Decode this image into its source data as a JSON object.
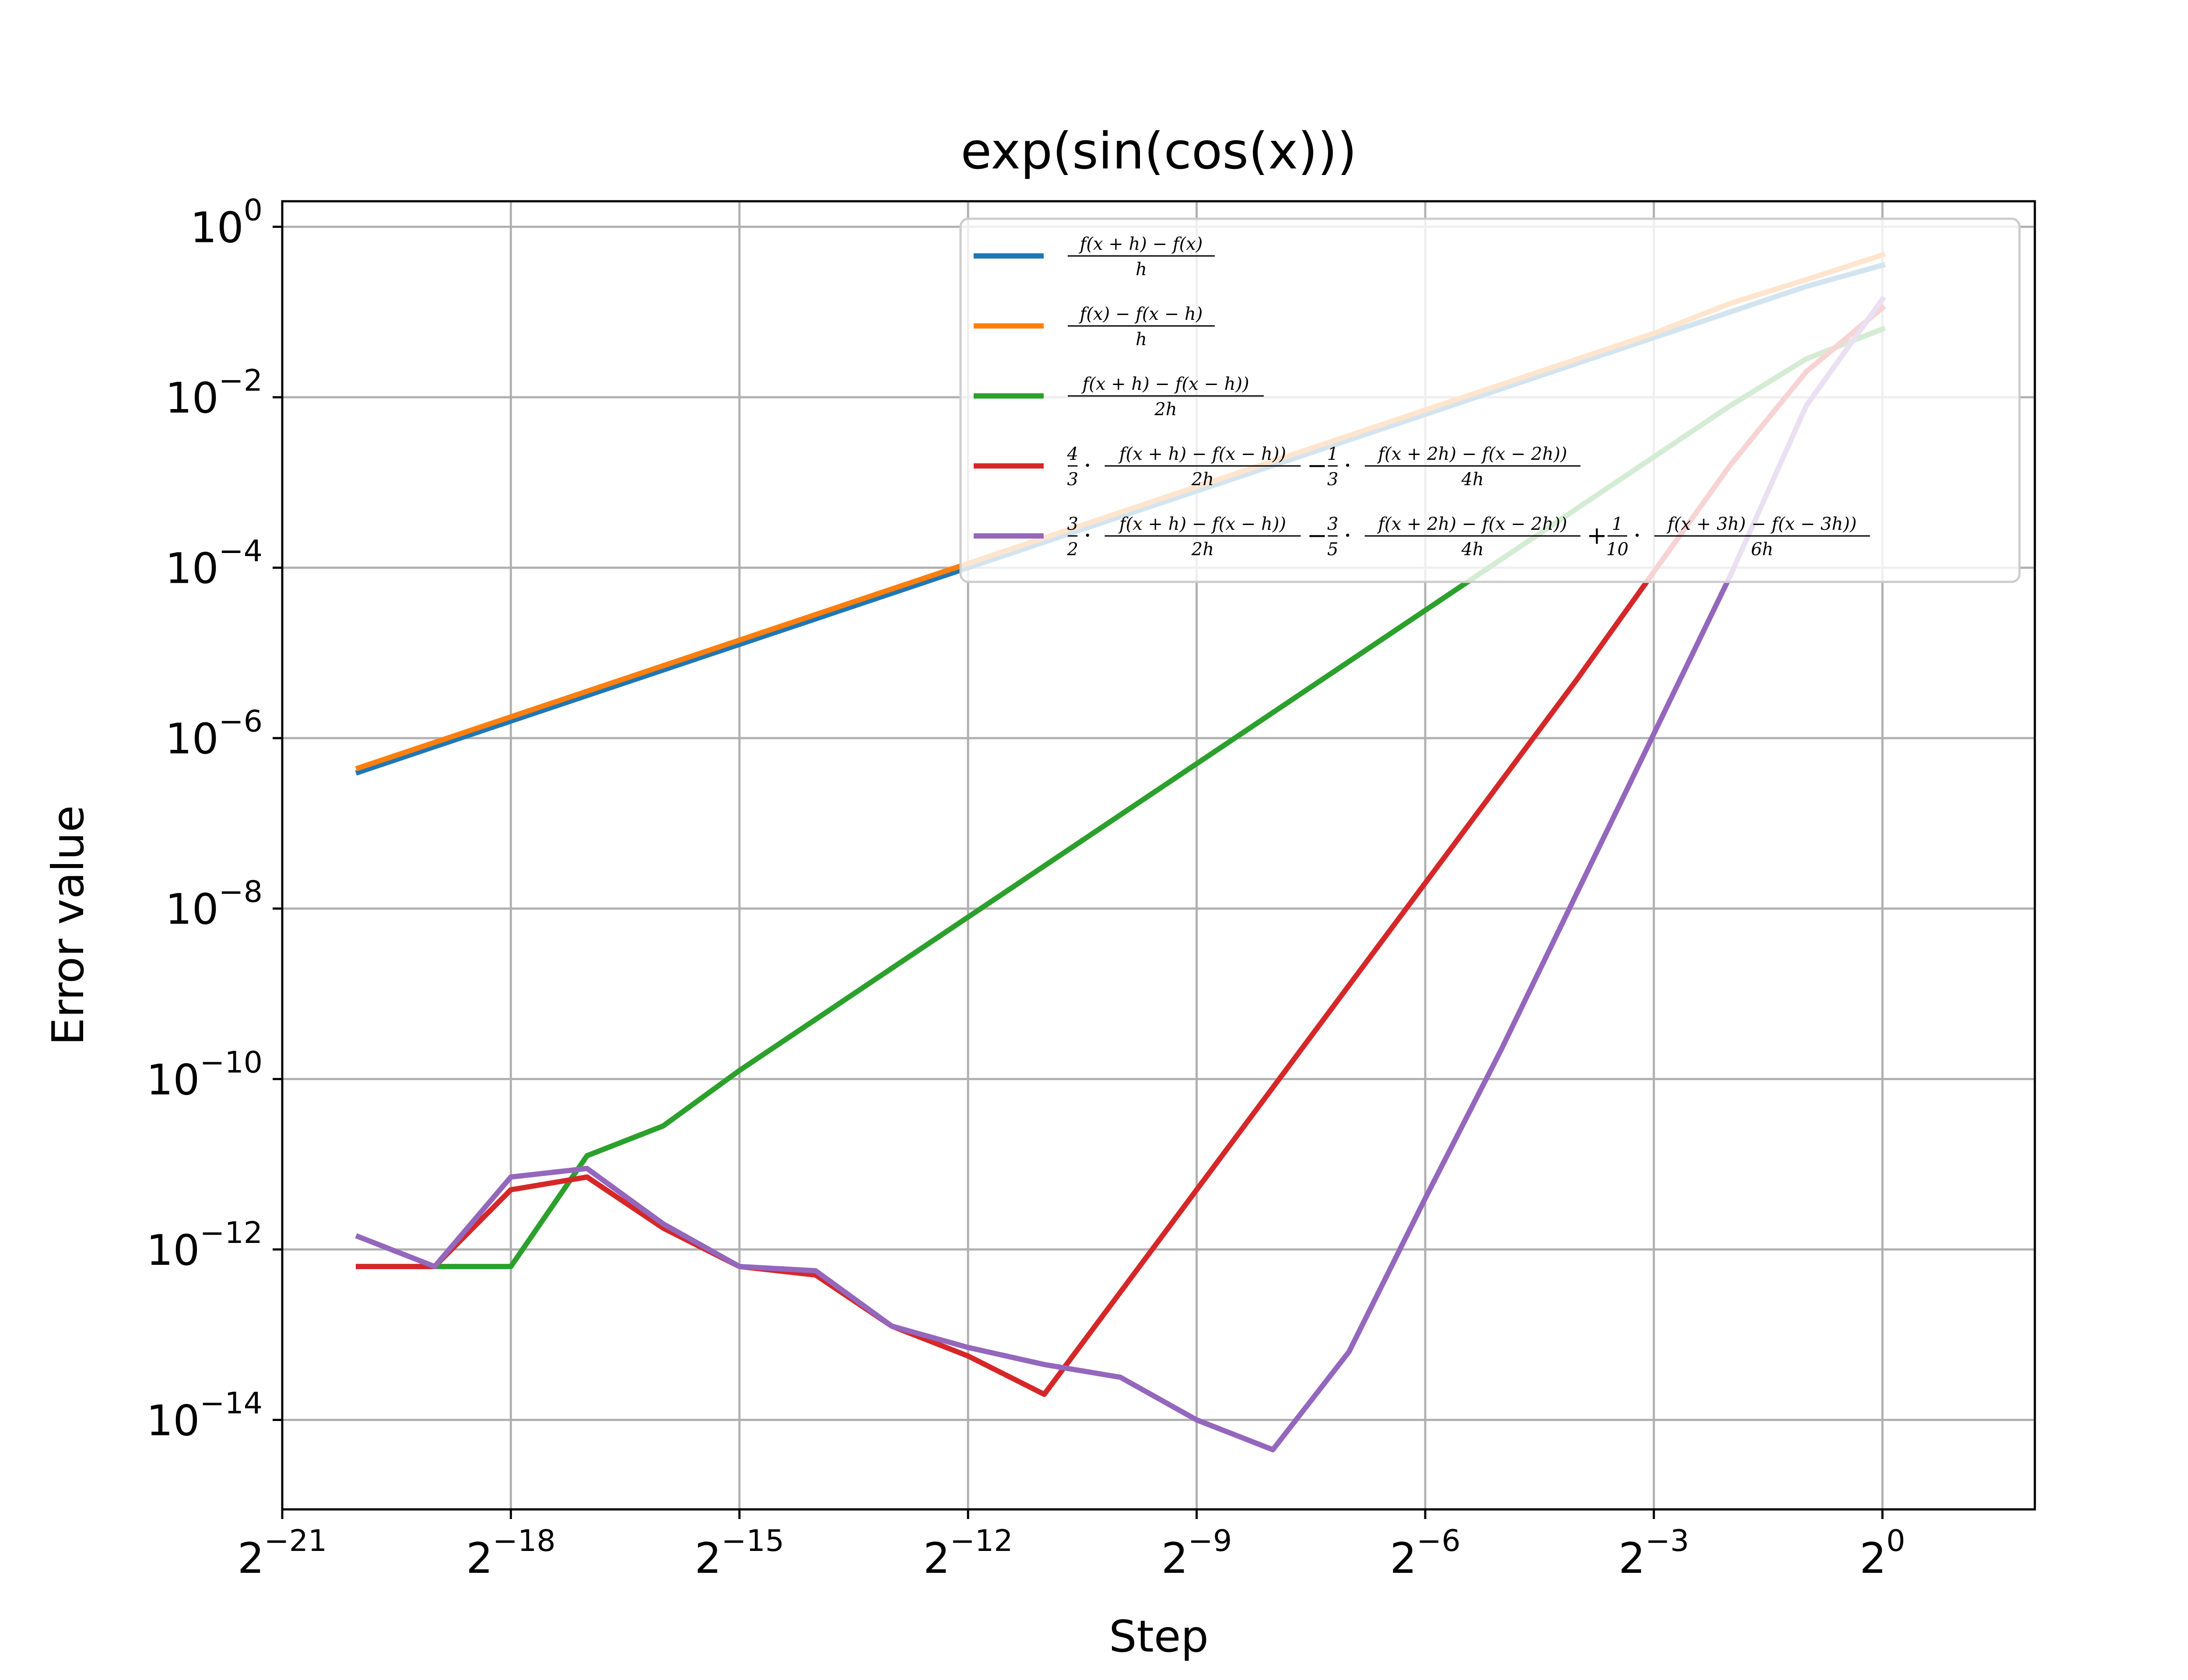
{
  "chart_data": {
    "type": "line",
    "title": "exp(sin(cos(x)))",
    "xlabel": "Step",
    "ylabel": "Error value",
    "x_scale": "log2",
    "y_scale": "log10",
    "xlim_exp": [
      -21,
      2
    ],
    "ylim_exp": [
      -15.05,
      0.3
    ],
    "x_tick_exps": [
      -21,
      -18,
      -15,
      -12,
      -9,
      -6,
      -3,
      0
    ],
    "y_tick_exps": [
      0,
      -2,
      -4,
      -6,
      -8,
      -10,
      -12,
      -14
    ],
    "x_tick_base": "2",
    "y_tick_base": "10",
    "grid": true,
    "legend_position": "upper-right",
    "x_exp": [
      -20,
      -19,
      -18,
      -17,
      -16,
      -15,
      -14,
      -13,
      -12,
      -11,
      -10,
      -9,
      -8,
      -7,
      -6,
      -5,
      -4,
      -3,
      -2,
      -1,
      0
    ],
    "series": [
      {
        "name": "forward",
        "color": "#1f77b4",
        "log10_values": [
          -6.4,
          -6.1,
          -5.8,
          -5.5,
          -5.2,
          -4.9,
          -4.6,
          -4.3,
          -4.0,
          -3.7,
          -3.4,
          -3.1,
          -2.8,
          -2.5,
          -2.2,
          -1.9,
          -1.6,
          -1.3,
          -1.0,
          -0.7,
          -0.45
        ]
      },
      {
        "name": "backward",
        "color": "#ff7f0e",
        "log10_values": [
          -6.35,
          -6.05,
          -5.75,
          -5.45,
          -5.15,
          -4.85,
          -4.55,
          -4.25,
          -3.95,
          -3.65,
          -3.35,
          -3.05,
          -2.75,
          -2.45,
          -2.15,
          -1.85,
          -1.55,
          -1.25,
          -0.9,
          -0.62,
          -0.33
        ]
      },
      {
        "name": "central",
        "color": "#2ca02c",
        "log10_values": [
          -12.2,
          -12.2,
          -12.2,
          -10.9,
          -10.55,
          -9.9,
          -9.3,
          -8.7,
          -8.1,
          -7.5,
          -6.9,
          -6.3,
          -5.7,
          -5.1,
          -4.5,
          -3.9,
          -3.3,
          -2.7,
          -2.1,
          -1.55,
          -1.2
        ]
      },
      {
        "name": "richardson",
        "color": "#d62728",
        "log10_values": [
          -12.2,
          -12.2,
          -11.3,
          -11.15,
          -11.75,
          -12.2,
          -12.3,
          -12.9,
          -13.25,
          -13.7,
          -12.5,
          -11.3,
          -10.1,
          -8.9,
          -7.7,
          -6.5,
          -5.3,
          -4.05,
          -2.8,
          -1.7,
          -0.95
        ]
      },
      {
        "name": "richardson3",
        "color": "#9467bd",
        "log10_values": [
          -11.85,
          -12.2,
          -11.15,
          -11.05,
          -11.7,
          -12.2,
          -12.25,
          -12.9,
          -13.15,
          -13.35,
          -13.5,
          -14.0,
          -14.35,
          -13.2,
          -11.4,
          -9.65,
          -7.8,
          -5.95,
          -4.1,
          -2.1,
          -0.85
        ]
      }
    ]
  }
}
